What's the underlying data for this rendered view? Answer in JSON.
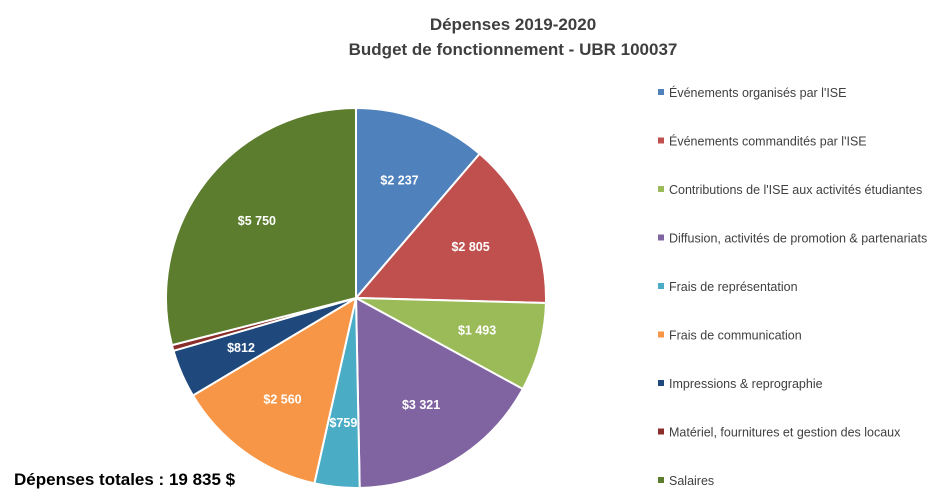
{
  "chart_data": {
    "type": "pie",
    "title": "Dépenses 2019-2020",
    "subtitle": "Budget de fonctionnement - UBR 100037",
    "legend_position": "right",
    "categories": [
      "Événements organisés par l'ISE",
      "Événements commandités par l'ISE",
      "Contributions de l'ISE aux activités étudiantes",
      "Diffusion, activités de promotion & partenariats",
      "Frais de représentation",
      "Frais de communication",
      "Impressions & reprographie",
      "Matériel, fournitures et gestion des locaux",
      "Salaires"
    ],
    "values": [
      2237,
      2805,
      1493,
      3321,
      759,
      2560,
      812,
      98,
      5750
    ],
    "data_labels": [
      "$2 237",
      "$2 805",
      "$1 493",
      "$3 321",
      "$759",
      "$2 560",
      "$812",
      "",
      "$5 750"
    ],
    "colors": [
      "#4f81bd",
      "#c0504d",
      "#9bbb59",
      "#8064a2",
      "#4bacc6",
      "#f79646",
      "#1f497d",
      "#8b2e2b",
      "#5d7d2e"
    ]
  },
  "footer": {
    "total_text": "Dépenses totales : 19 835 $"
  }
}
